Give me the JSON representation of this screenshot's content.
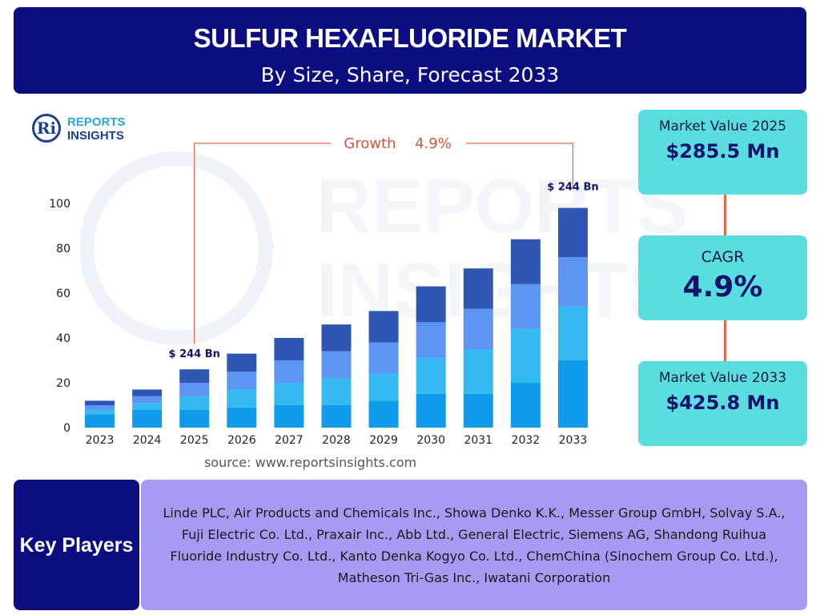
{
  "header": {
    "title": "SULFUR HEXAFLUORIDE MARKET",
    "subtitle": "By Size, Share, Forecast 2033"
  },
  "logo": {
    "line1": "REPORTS",
    "line2": "INSIGHTS",
    "mark": "Ri"
  },
  "watermark": {
    "text1": "REPORTS",
    "text2": "INSIGHTS"
  },
  "colors": {
    "header_bg": "#0d0d82",
    "card_bg": "#59dde1",
    "players_bg": "#a39cf2",
    "connector": "#e3694a",
    "series": [
      "#0f9bea",
      "#36b8f0",
      "#5c95f3",
      "#2f56b3"
    ]
  },
  "chart_data": {
    "type": "bar",
    "stacked": true,
    "categories": [
      "2023",
      "2024",
      "2025",
      "2026",
      "2027",
      "2028",
      "2029",
      "2030",
      "2031",
      "2032",
      "2033"
    ],
    "series": [
      {
        "values": [
          6,
          8,
          8,
          9,
          10,
          10,
          12,
          15,
          15,
          20,
          30
        ]
      },
      {
        "values": [
          2,
          3,
          6,
          8,
          10,
          12,
          12,
          16,
          20,
          24,
          24
        ]
      },
      {
        "values": [
          2,
          3,
          6,
          8,
          10,
          12,
          14,
          16,
          18,
          20,
          22
        ]
      },
      {
        "values": [
          2,
          3,
          6,
          8,
          10,
          12,
          14,
          16,
          18,
          20,
          22
        ]
      }
    ],
    "ylim": [
      0,
      100
    ],
    "yticks": [
      0,
      20,
      40,
      60,
      80,
      100
    ],
    "annotations": {
      "growth_label": "Growth",
      "growth_value": "4.9%",
      "start_label": "$ 244 Bn",
      "end_label": "$ 244 Bn"
    },
    "title": "",
    "xlabel": "",
    "ylabel": ""
  },
  "source": "source: www.reportsinsights.com",
  "cards": {
    "value_2025": {
      "label": "Market Value 2025",
      "value": "$285.5 Mn"
    },
    "cagr": {
      "label": "CAGR",
      "value": "4.9%"
    },
    "value_2033": {
      "label": "Market Value 2033",
      "value": "$425.8 Mn"
    }
  },
  "key_players": {
    "title": "Key Players",
    "text": "Linde PLC, Air Products and Chemicals Inc., Showa Denko K.K., Messer Group GmbH, Solvay S.A., Fuji Electric Co. Ltd., Praxair Inc., Abb Ltd., General Electric, Siemens AG, Shandong Ruihua Fluoride Industry Co. Ltd., Kanto Denka Kogyo Co. Ltd., ChemChina (Sinochem Group Co. Ltd.), Matheson Tri-Gas Inc., Iwatani Corporation"
  }
}
